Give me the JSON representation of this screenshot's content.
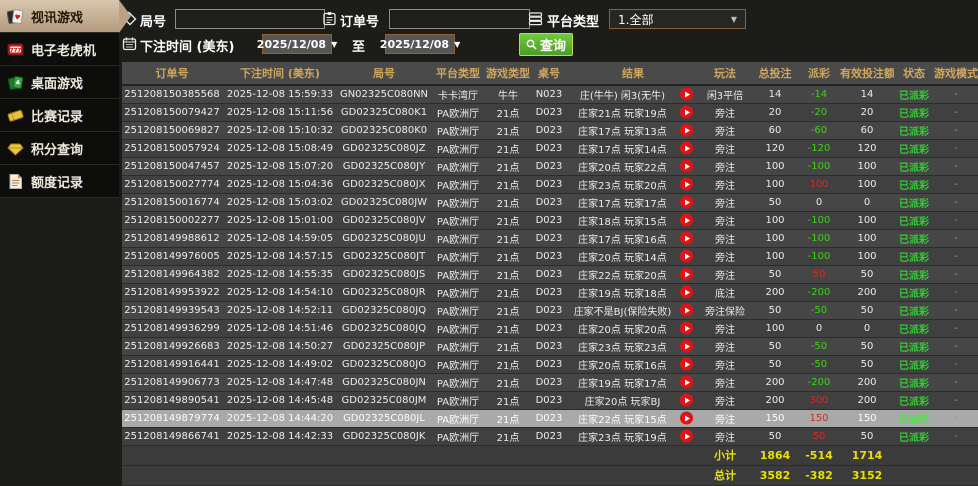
{
  "sidebar": {
    "items": [
      {
        "label": "视讯游戏",
        "icon": "playing-cards-icon",
        "active": true
      },
      {
        "label": "电子老虎机",
        "icon": "slot-machine-icon",
        "active": false
      },
      {
        "label": "桌面游戏",
        "icon": "table-games-icon",
        "active": false
      },
      {
        "label": "比赛记录",
        "icon": "ticket-icon",
        "active": false
      },
      {
        "label": "积分查询",
        "icon": "gem-icon",
        "active": false
      },
      {
        "label": "额度记录",
        "icon": "document-icon",
        "active": false
      }
    ]
  },
  "filters": {
    "round_label": "局号",
    "round_value": "",
    "order_label": "订单号",
    "order_value": "",
    "platform_label": "平台类型",
    "platform_value": "1.全部",
    "bet_time_label": "下注时间 (美东)",
    "date_from": "2025/12/08",
    "to_label": "至",
    "date_to": "2025/12/08",
    "search_label": "查询"
  },
  "table": {
    "columns": [
      "订单号",
      "下注时间 (美东)",
      "局号",
      "平台类型",
      "游戏类型",
      "桌号",
      "结果",
      "玩法",
      "总投注",
      "派彩",
      "有效投注额",
      "状态",
      "游戏模式"
    ],
    "rows": [
      {
        "order": "251208150385568",
        "time": "2025-12-08 15:59:33",
        "round": "GN02325C080NN",
        "platform": "卡卡湾厅",
        "game": "牛牛",
        "table_no": "N023",
        "result": "庄(牛牛) 闲3(无牛)",
        "play": "闲3平倍",
        "bet": "14",
        "payout": "-14",
        "valid": "14",
        "status": "已派彩",
        "mode": "-",
        "highlight": false
      },
      {
        "order": "251208150079427",
        "time": "2025-12-08 15:11:56",
        "round": "GD02325C080K1",
        "platform": "PA欧洲厅",
        "game": "21点",
        "table_no": "D023",
        "result": "庄家21点 玩家19点",
        "play": "旁注",
        "bet": "20",
        "payout": "-20",
        "valid": "20",
        "status": "已派彩",
        "mode": "-",
        "highlight": false
      },
      {
        "order": "251208150069827",
        "time": "2025-12-08 15:10:32",
        "round": "GD02325C080K0",
        "platform": "PA欧洲厅",
        "game": "21点",
        "table_no": "D023",
        "result": "庄家17点 玩家13点",
        "play": "旁注",
        "bet": "60",
        "payout": "-60",
        "valid": "60",
        "status": "已派彩",
        "mode": "-",
        "highlight": false
      },
      {
        "order": "251208150057924",
        "time": "2025-12-08 15:08:49",
        "round": "GD02325C080JZ",
        "platform": "PA欧洲厅",
        "game": "21点",
        "table_no": "D023",
        "result": "庄家17点 玩家14点",
        "play": "旁注",
        "bet": "120",
        "payout": "-120",
        "valid": "120",
        "status": "已派彩",
        "mode": "-",
        "highlight": false
      },
      {
        "order": "251208150047457",
        "time": "2025-12-08 15:07:20",
        "round": "GD02325C080JY",
        "platform": "PA欧洲厅",
        "game": "21点",
        "table_no": "D023",
        "result": "庄家20点 玩家22点",
        "play": "旁注",
        "bet": "100",
        "payout": "-100",
        "valid": "100",
        "status": "已派彩",
        "mode": "-",
        "highlight": false
      },
      {
        "order": "251208150027774",
        "time": "2025-12-08 15:04:36",
        "round": "GD02325C080JX",
        "platform": "PA欧洲厅",
        "game": "21点",
        "table_no": "D023",
        "result": "庄家23点 玩家20点",
        "play": "旁注",
        "bet": "100",
        "payout": "100",
        "valid": "100",
        "status": "已派彩",
        "mode": "-",
        "highlight": false
      },
      {
        "order": "251208150016774",
        "time": "2025-12-08 15:03:02",
        "round": "GD02325C080JW",
        "platform": "PA欧洲厅",
        "game": "21点",
        "table_no": "D023",
        "result": "庄家17点 玩家17点",
        "play": "旁注",
        "bet": "50",
        "payout": "0",
        "valid": "0",
        "status": "已派彩",
        "mode": "-",
        "highlight": false
      },
      {
        "order": "251208150002277",
        "time": "2025-12-08 15:01:00",
        "round": "GD02325C080JV",
        "platform": "PA欧洲厅",
        "game": "21点",
        "table_no": "D023",
        "result": "庄家18点 玩家15点",
        "play": "旁注",
        "bet": "100",
        "payout": "-100",
        "valid": "100",
        "status": "已派彩",
        "mode": "-",
        "highlight": false
      },
      {
        "order": "251208149988612",
        "time": "2025-12-08 14:59:05",
        "round": "GD02325C080JU",
        "platform": "PA欧洲厅",
        "game": "21点",
        "table_no": "D023",
        "result": "庄家17点 玩家16点",
        "play": "旁注",
        "bet": "100",
        "payout": "-100",
        "valid": "100",
        "status": "已派彩",
        "mode": "-",
        "highlight": false
      },
      {
        "order": "251208149976005",
        "time": "2025-12-08 14:57:15",
        "round": "GD02325C080JT",
        "platform": "PA欧洲厅",
        "game": "21点",
        "table_no": "D023",
        "result": "庄家20点 玩家14点",
        "play": "旁注",
        "bet": "100",
        "payout": "-100",
        "valid": "100",
        "status": "已派彩",
        "mode": "-",
        "highlight": false
      },
      {
        "order": "251208149964382",
        "time": "2025-12-08 14:55:35",
        "round": "GD02325C080JS",
        "platform": "PA欧洲厅",
        "game": "21点",
        "table_no": "D023",
        "result": "庄家22点 玩家20点",
        "play": "旁注",
        "bet": "50",
        "payout": "50",
        "valid": "50",
        "status": "已派彩",
        "mode": "-",
        "highlight": false
      },
      {
        "order": "251208149953922",
        "time": "2025-12-08 14:54:10",
        "round": "GD02325C080JR",
        "platform": "PA欧洲厅",
        "game": "21点",
        "table_no": "D023",
        "result": "庄家19点 玩家18点",
        "play": "底注",
        "bet": "200",
        "payout": "-200",
        "valid": "200",
        "status": "已派彩",
        "mode": "-",
        "highlight": false
      },
      {
        "order": "251208149939543",
        "time": "2025-12-08 14:52:11",
        "round": "GD02325C080JQ",
        "platform": "PA欧洲厅",
        "game": "21点",
        "table_no": "D023",
        "result": "庄家不是BJ(保险失败)",
        "play": "旁注保险",
        "bet": "50",
        "payout": "-50",
        "valid": "50",
        "status": "已派彩",
        "mode": "-",
        "highlight": false
      },
      {
        "order": "251208149936299",
        "time": "2025-12-08 14:51:46",
        "round": "GD02325C080JQ",
        "platform": "PA欧洲厅",
        "game": "21点",
        "table_no": "D023",
        "result": "庄家20点 玩家20点",
        "play": "旁注",
        "bet": "100",
        "payout": "0",
        "valid": "0",
        "status": "已派彩",
        "mode": "-",
        "highlight": false
      },
      {
        "order": "251208149926683",
        "time": "2025-12-08 14:50:27",
        "round": "GD02325C080JP",
        "platform": "PA欧洲厅",
        "game": "21点",
        "table_no": "D023",
        "result": "庄家23点 玩家23点",
        "play": "旁注",
        "bet": "50",
        "payout": "-50",
        "valid": "50",
        "status": "已派彩",
        "mode": "-",
        "highlight": false
      },
      {
        "order": "251208149916441",
        "time": "2025-12-08 14:49:02",
        "round": "GD02325C080JO",
        "platform": "PA欧洲厅",
        "game": "21点",
        "table_no": "D023",
        "result": "庄家20点 玩家16点",
        "play": "旁注",
        "bet": "50",
        "payout": "-50",
        "valid": "50",
        "status": "已派彩",
        "mode": "-",
        "highlight": false
      },
      {
        "order": "251208149906773",
        "time": "2025-12-08 14:47:48",
        "round": "GD02325C080JN",
        "platform": "PA欧洲厅",
        "game": "21点",
        "table_no": "D023",
        "result": "庄家19点 玩家17点",
        "play": "旁注",
        "bet": "200",
        "payout": "-200",
        "valid": "200",
        "status": "已派彩",
        "mode": "-",
        "highlight": false
      },
      {
        "order": "251208149890541",
        "time": "2025-12-08 14:45:48",
        "round": "GD02325C080JM",
        "platform": "PA欧洲厅",
        "game": "21点",
        "table_no": "D023",
        "result": "庄家20点 玩家BJ",
        "play": "旁注",
        "bet": "200",
        "payout": "300",
        "valid": "200",
        "status": "已派彩",
        "mode": "-",
        "highlight": false
      },
      {
        "order": "251208149879774",
        "time": "2025-12-08 14:44:20",
        "round": "GD02325C080JL",
        "platform": "PA欧洲厅",
        "game": "21点",
        "table_no": "D023",
        "result": "庄家22点 玩家15点",
        "play": "旁注",
        "bet": "150",
        "payout": "150",
        "valid": "150",
        "status": "已派彩",
        "mode": "-",
        "highlight": true
      },
      {
        "order": "251208149866741",
        "time": "2025-12-08 14:42:33",
        "round": "GD02325C080JK",
        "platform": "PA欧洲厅",
        "game": "21点",
        "table_no": "D023",
        "result": "庄家23点 玩家19点",
        "play": "旁注",
        "bet": "50",
        "payout": "50",
        "valid": "50",
        "status": "已派彩",
        "mode": "-",
        "highlight": false
      }
    ],
    "subtotal": {
      "label": "小计",
      "bet": "1864",
      "payout": "-514",
      "valid": "1714"
    },
    "total": {
      "label": "总计",
      "bet": "3582",
      "payout": "-382",
      "valid": "3152"
    }
  },
  "colors": {
    "accent_tan": "#c8b196",
    "header_gold": "#cfa75f",
    "win_red": "#d42a21",
    "lose_green": "#3bd414",
    "totals_yellow": "#e8e100",
    "search_green": "#55b42c",
    "select_border": "#8a6234"
  }
}
